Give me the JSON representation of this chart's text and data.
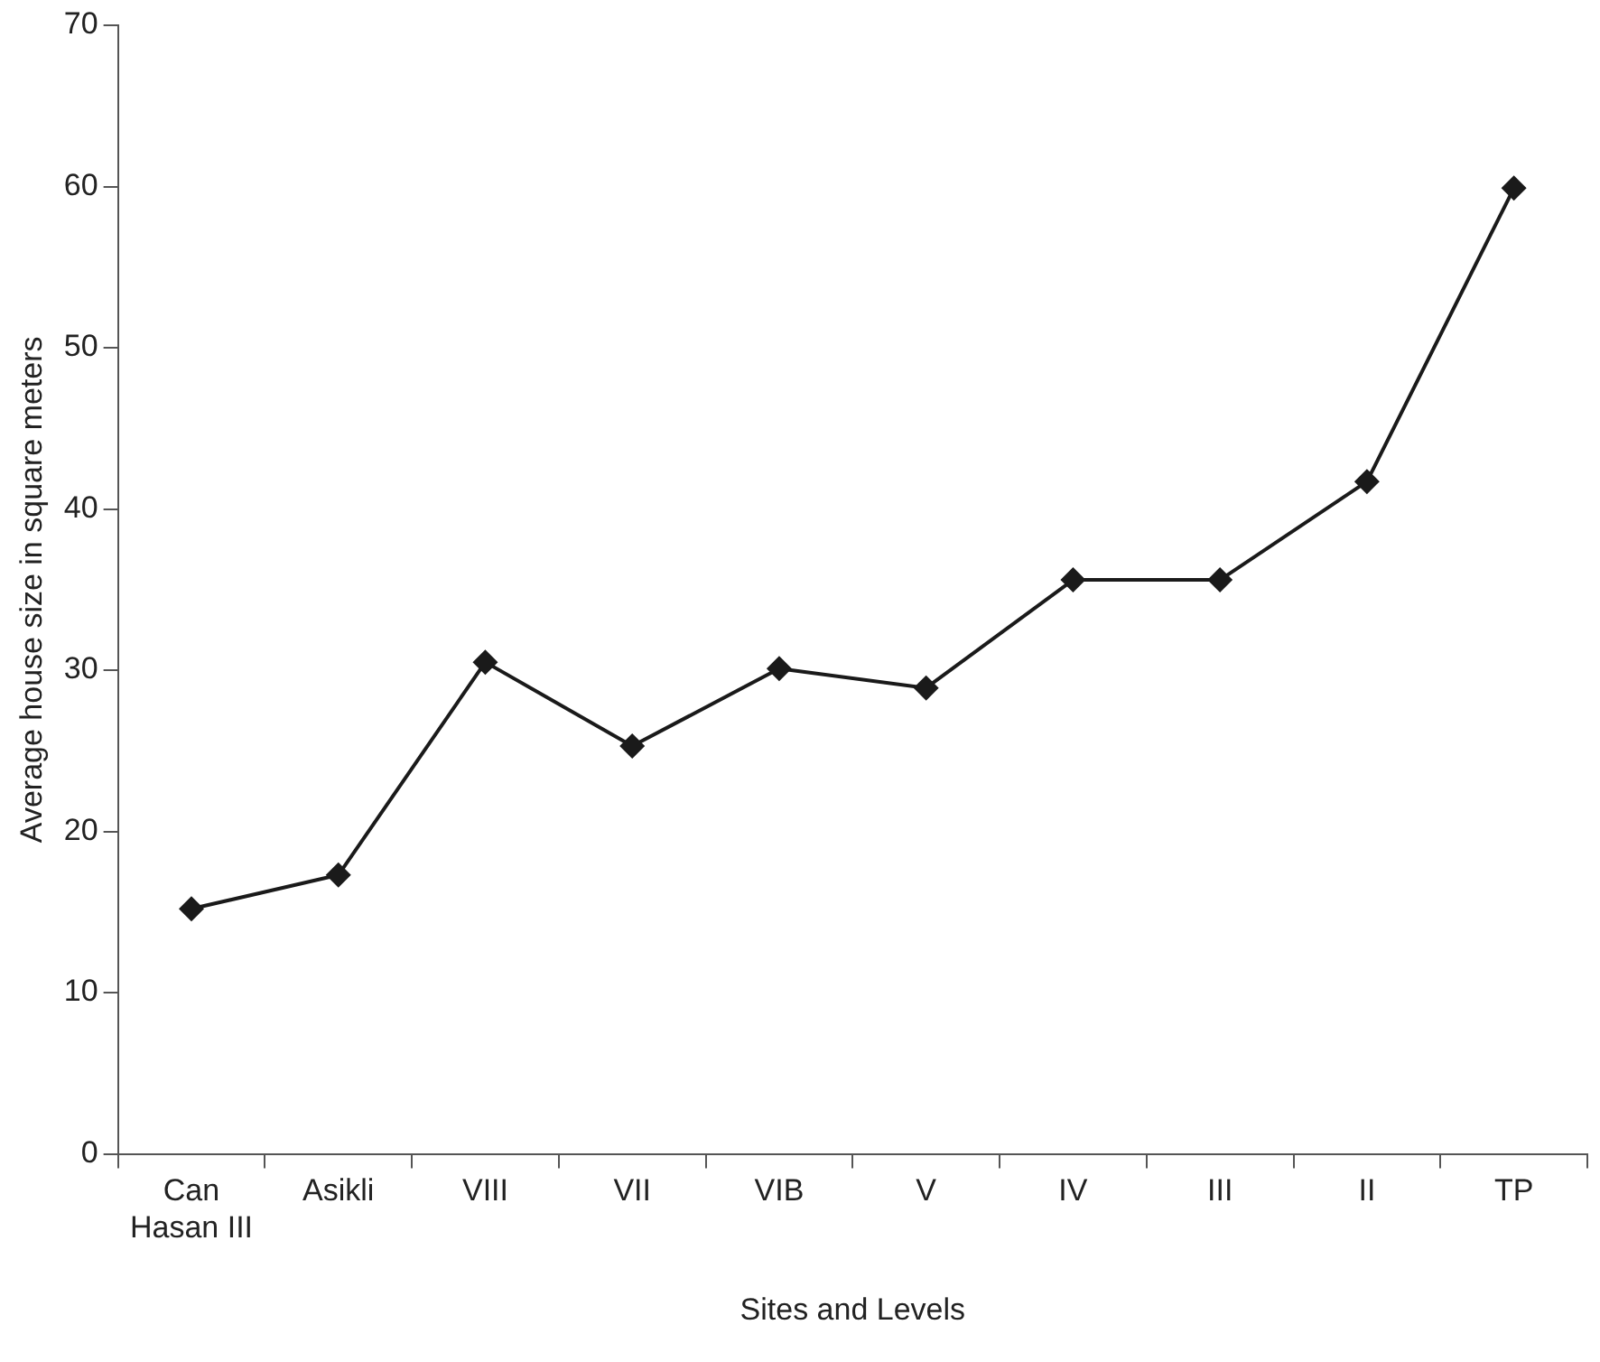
{
  "chart_data": {
    "type": "line",
    "xlabel": "Sites and Levels",
    "ylabel": "Average house size in square meters",
    "categories": [
      "Can Hasan III",
      "Asikli",
      "VIII",
      "VII",
      "VIB",
      "V",
      "IV",
      "III",
      "II",
      "TP"
    ],
    "series": [
      {
        "color": "#1a1a1a",
        "values": [
          15.2,
          17.3,
          30.5,
          25.3,
          30.1,
          28.9,
          35.6,
          35.6,
          41.7,
          59.9
        ]
      }
    ],
    "ylim": [
      0,
      70
    ],
    "yticks": [
      0,
      10,
      20,
      30,
      40,
      50,
      60,
      70
    ],
    "grid": false,
    "legend": false,
    "marker": "diamond",
    "line_style": "solid"
  }
}
